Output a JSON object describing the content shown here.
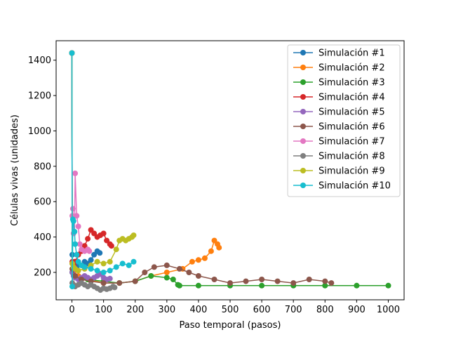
{
  "chart_data": {
    "type": "line",
    "xlabel": "Paso temporal (pasos)",
    "ylabel": "Células vivas (unidades)",
    "xlim": [
      -50,
      1050
    ],
    "ylim": [
      45,
      1510
    ],
    "xticks": [
      0,
      100,
      200,
      300,
      400,
      500,
      600,
      700,
      800,
      900,
      1000
    ],
    "yticks": [
      200,
      400,
      600,
      800,
      1000,
      1200,
      1400
    ],
    "grid": false,
    "legend_position": "top-right",
    "marker": "circle",
    "series": [
      {
        "name": "Simulación #1",
        "color": "#1f77b4",
        "x": [
          0,
          1,
          3,
          6,
          10,
          15,
          20,
          30,
          40,
          50,
          60,
          70,
          80,
          88
        ],
        "y": [
          1440,
          300,
          220,
          240,
          260,
          230,
          250,
          240,
          260,
          250,
          270,
          300,
          320,
          310
        ]
      },
      {
        "name": "Simulación #2",
        "color": "#ff7f0e",
        "x": [
          0,
          1,
          5,
          20,
          50,
          100,
          150,
          200,
          250,
          300,
          350,
          380,
          400,
          420,
          440,
          450,
          460,
          465
        ],
        "y": [
          1440,
          250,
          200,
          180,
          160,
          140,
          140,
          150,
          180,
          200,
          220,
          260,
          270,
          280,
          320,
          380,
          360,
          340
        ]
      },
      {
        "name": "Simulación #3",
        "color": "#2ca02c",
        "x": [
          0,
          1,
          10,
          50,
          100,
          150,
          200,
          250,
          300,
          320,
          335,
          340,
          400,
          500,
          600,
          700,
          800,
          900,
          1000
        ],
        "y": [
          1440,
          200,
          170,
          160,
          150,
          140,
          150,
          180,
          170,
          160,
          130,
          125,
          125,
          125,
          125,
          125,
          125,
          125,
          125
        ]
      },
      {
        "name": "Simulación #4",
        "color": "#d62728",
        "x": [
          0,
          1,
          5,
          10,
          20,
          30,
          40,
          50,
          60,
          70,
          80,
          90,
          100,
          110,
          120,
          125
        ],
        "y": [
          1440,
          260,
          240,
          260,
          300,
          320,
          350,
          390,
          440,
          420,
          400,
          410,
          420,
          380,
          360,
          350
        ]
      },
      {
        "name": "Simulación #5",
        "color": "#9467bd",
        "x": [
          0,
          1,
          5,
          10,
          20,
          30,
          40,
          50,
          60,
          70,
          80,
          90,
          100,
          110,
          120
        ],
        "y": [
          1440,
          200,
          180,
          170,
          160,
          170,
          180,
          170,
          160,
          170,
          180,
          190,
          170,
          160,
          165
        ]
      },
      {
        "name": "Simulación #6",
        "color": "#8c564b",
        "x": [
          0,
          1,
          10,
          30,
          60,
          100,
          150,
          200,
          230,
          260,
          300,
          340,
          370,
          400,
          450,
          500,
          550,
          600,
          650,
          700,
          750,
          800,
          820
        ],
        "y": [
          1440,
          220,
          180,
          160,
          150,
          140,
          140,
          150,
          200,
          230,
          240,
          220,
          200,
          180,
          160,
          140,
          150,
          160,
          150,
          140,
          160,
          150,
          140
        ]
      },
      {
        "name": "Simulación #7",
        "color": "#e377c2",
        "x": [
          0,
          1,
          3,
          5,
          8,
          10,
          15,
          20,
          25,
          30,
          40,
          50,
          55
        ],
        "y": [
          1440,
          520,
          560,
          420,
          430,
          760,
          520,
          460,
          360,
          330,
          320,
          330,
          320
        ]
      },
      {
        "name": "Simulación #8",
        "color": "#7f7f7f",
        "x": [
          0,
          1,
          5,
          10,
          20,
          30,
          40,
          50,
          60,
          70,
          80,
          90,
          100,
          110,
          120,
          130,
          135
        ],
        "y": [
          1440,
          140,
          130,
          120,
          130,
          140,
          130,
          120,
          130,
          120,
          110,
          100,
          110,
          105,
          110,
          120,
          115
        ]
      },
      {
        "name": "Simulación #9",
        "color": "#bcbd22",
        "x": [
          0,
          1,
          5,
          10,
          20,
          40,
          60,
          80,
          100,
          120,
          140,
          150,
          160,
          170,
          180,
          190,
          195
        ],
        "y": [
          1440,
          250,
          230,
          220,
          210,
          220,
          240,
          260,
          250,
          260,
          330,
          380,
          390,
          380,
          390,
          400,
          410
        ]
      },
      {
        "name": "Simulación #10",
        "color": "#17becf",
        "x": [
          0,
          1,
          3,
          5,
          8,
          10,
          15,
          20,
          30,
          40,
          60,
          80,
          100,
          120,
          140,
          160,
          180,
          195
        ],
        "y": [
          1440,
          120,
          500,
          490,
          430,
          360,
          300,
          260,
          240,
          230,
          220,
          210,
          200,
          210,
          230,
          250,
          240,
          260
        ]
      }
    ]
  }
}
